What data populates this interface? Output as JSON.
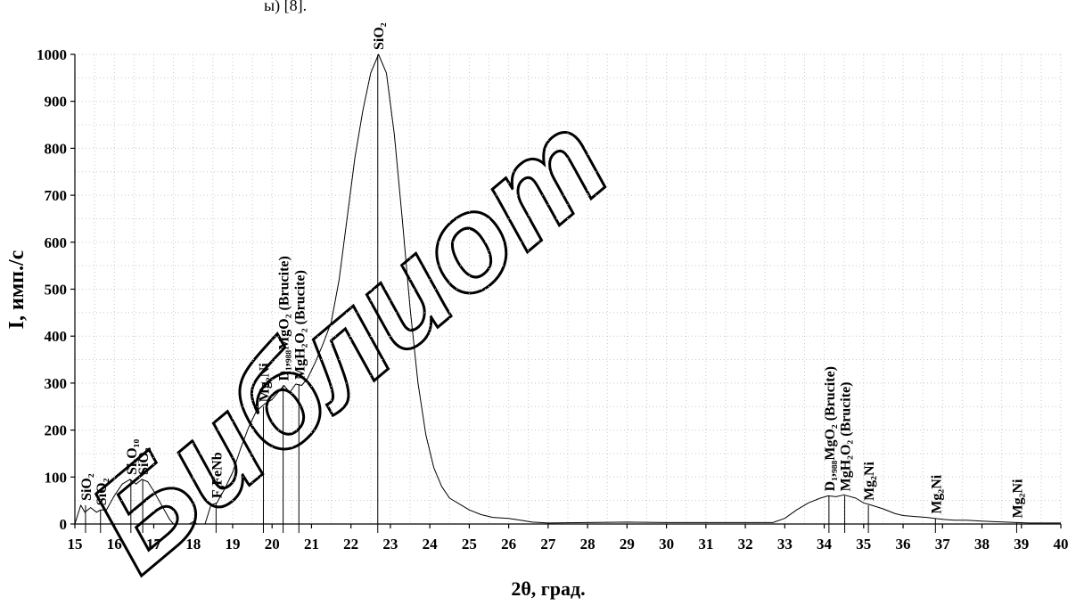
{
  "header_fragment": "ы) [8].",
  "watermark": "Библиот",
  "chart_data": {
    "type": "line",
    "title": "",
    "xlabel": "2θ, град.",
    "ylabel": "I, имп./с",
    "xlim": [
      15,
      40
    ],
    "ylim": [
      0,
      1000
    ],
    "xticks": [
      15,
      16,
      17,
      18,
      19,
      20,
      21,
      22,
      23,
      24,
      25,
      26,
      27,
      28,
      29,
      30,
      31,
      32,
      33,
      34,
      35,
      36,
      37,
      38,
      39,
      40
    ],
    "yticks": [
      0,
      100,
      200,
      300,
      400,
      500,
      600,
      700,
      800,
      900,
      1000
    ],
    "grid": true,
    "series": [
      {
        "x": [
          15.0,
          15.15,
          15.25,
          15.4,
          15.55,
          15.65,
          15.8,
          16.0,
          16.2,
          16.4,
          16.55,
          16.7,
          16.85,
          17.0,
          17.2,
          17.4,
          17.5,
          17.7,
          17.9,
          18.0,
          18.1,
          18.3,
          18.45,
          18.6,
          18.8,
          19.0,
          19.2,
          19.4,
          19.6,
          19.8,
          20.0,
          20.15,
          20.3,
          20.45,
          20.6,
          20.75,
          20.9,
          21.1,
          21.3,
          21.5,
          21.7,
          21.9,
          22.1,
          22.3,
          22.5,
          22.7,
          22.9,
          23.1,
          23.3,
          23.5,
          23.7,
          23.9,
          24.1,
          24.3,
          24.5,
          24.8,
          25.0,
          25.3,
          25.6,
          26.0,
          26.3,
          26.6,
          27.0,
          28.0,
          29.0,
          30.0,
          31.0,
          32.0,
          32.7,
          33.0,
          33.3,
          33.6,
          33.9,
          34.1,
          34.3,
          34.5,
          34.8,
          35.0,
          35.2,
          35.5,
          35.8,
          36.0,
          36.3,
          36.6,
          36.8,
          37.0,
          37.3,
          37.6,
          38.0,
          38.3,
          38.6,
          38.9,
          39.2,
          39.5,
          40.0
        ],
        "y": [
          0,
          40,
          25,
          35,
          25,
          30,
          30,
          60,
          85,
          95,
          85,
          95,
          90,
          70,
          40,
          10,
          0,
          0,
          0,
          5,
          0,
          0,
          40,
          45,
          75,
          110,
          160,
          205,
          240,
          255,
          265,
          280,
          295,
          280,
          298,
          295,
          310,
          345,
          385,
          430,
          520,
          650,
          780,
          880,
          960,
          1000,
          960,
          830,
          650,
          460,
          300,
          190,
          120,
          80,
          55,
          40,
          30,
          20,
          14,
          12,
          8,
          4,
          2,
          3,
          4,
          3,
          3,
          3,
          3,
          12,
          30,
          45,
          55,
          60,
          58,
          62,
          55,
          45,
          40,
          32,
          22,
          18,
          16,
          14,
          12,
          10,
          8,
          8,
          6,
          5,
          4,
          3,
          2,
          2,
          2
        ]
      }
    ],
    "peak_labels": [
      {
        "x": 15.27,
        "text": "SiO₂",
        "line_top": 40
      },
      {
        "x": 15.65,
        "text": "SiO₂",
        "line_top": 30
      },
      {
        "x": 16.42,
        "text": "Si₅O₁₀",
        "line_top": 95
      },
      {
        "x": 16.72,
        "text": "SiO₂",
        "line_top": 95
      },
      {
        "x": 18.58,
        "text": "F₆FeNb",
        "line_top": 45
      },
      {
        "x": 19.78,
        "text": "Mg₂Ni",
        "line_top": 250
      },
      {
        "x": 20.28,
        "text": "D₁,₉₈₈MgO₂ (Brucite)",
        "line_top": 295
      },
      {
        "x": 20.68,
        "text": "MgH₂O₂ (Brucite)",
        "line_top": 298
      },
      {
        "x": 22.68,
        "text": "SiO₂",
        "line_top": 1000
      },
      {
        "x": 34.12,
        "text": "D₁,₉₈₈MgO₂ (Brucite)",
        "line_top": 60
      },
      {
        "x": 34.52,
        "text": "MgH₂O₂ (Brucite)",
        "line_top": 60
      },
      {
        "x": 35.12,
        "text": "Mg₂Ni",
        "line_top": 40
      },
      {
        "x": 36.82,
        "text": "Mg₂Ni",
        "line_top": 12
      },
      {
        "x": 38.88,
        "text": "Mg₂Ni",
        "line_top": 3
      }
    ]
  }
}
